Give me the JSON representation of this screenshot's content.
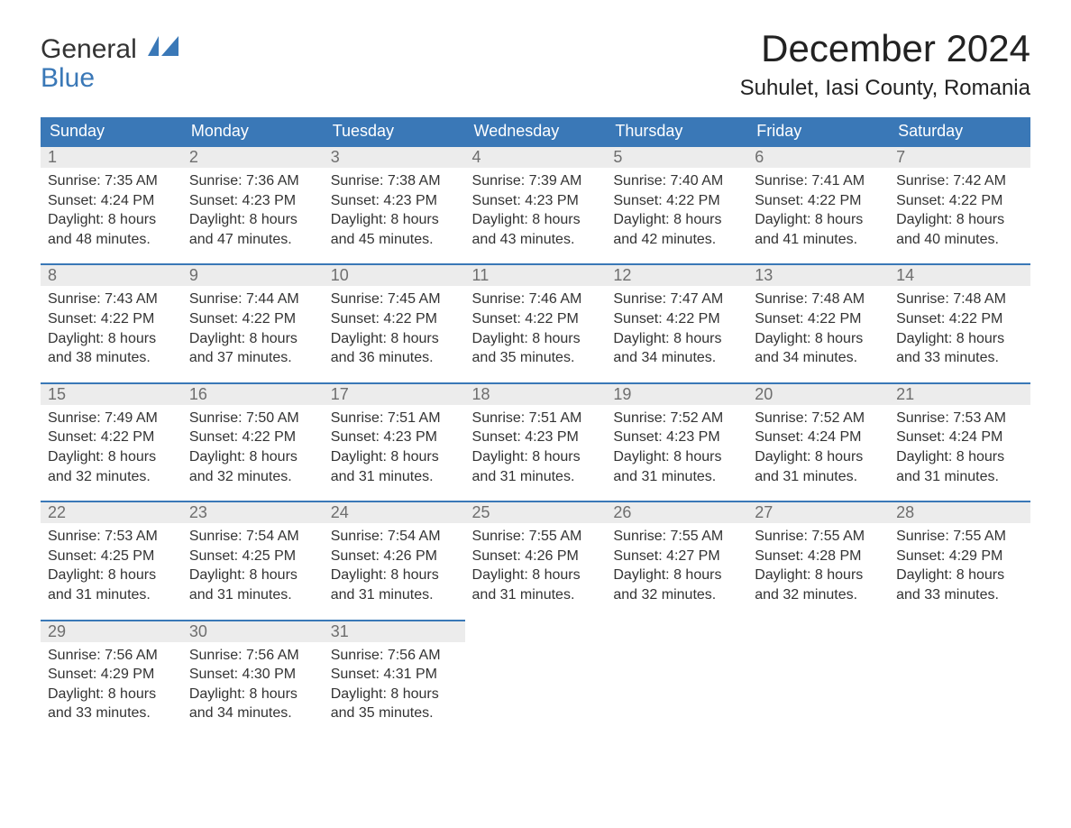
{
  "logo": {
    "line1": "General",
    "line2": "Blue"
  },
  "title": "December 2024",
  "location": "Suhulet, Iasi County, Romania",
  "colors": {
    "header_bg": "#3a78b7",
    "header_text": "#ffffff",
    "daynum_bg": "#ececec",
    "daynum_text": "#6e6e6e",
    "body_text": "#333333",
    "page_bg": "#ffffff"
  },
  "day_headers": [
    "Sunday",
    "Monday",
    "Tuesday",
    "Wednesday",
    "Thursday",
    "Friday",
    "Saturday"
  ],
  "weeks": [
    [
      {
        "n": "1",
        "sunrise": "Sunrise: 7:35 AM",
        "sunset": "Sunset: 4:24 PM",
        "daylight": "Daylight: 8 hours and 48 minutes."
      },
      {
        "n": "2",
        "sunrise": "Sunrise: 7:36 AM",
        "sunset": "Sunset: 4:23 PM",
        "daylight": "Daylight: 8 hours and 47 minutes."
      },
      {
        "n": "3",
        "sunrise": "Sunrise: 7:38 AM",
        "sunset": "Sunset: 4:23 PM",
        "daylight": "Daylight: 8 hours and 45 minutes."
      },
      {
        "n": "4",
        "sunrise": "Sunrise: 7:39 AM",
        "sunset": "Sunset: 4:23 PM",
        "daylight": "Daylight: 8 hours and 43 minutes."
      },
      {
        "n": "5",
        "sunrise": "Sunrise: 7:40 AM",
        "sunset": "Sunset: 4:22 PM",
        "daylight": "Daylight: 8 hours and 42 minutes."
      },
      {
        "n": "6",
        "sunrise": "Sunrise: 7:41 AM",
        "sunset": "Sunset: 4:22 PM",
        "daylight": "Daylight: 8 hours and 41 minutes."
      },
      {
        "n": "7",
        "sunrise": "Sunrise: 7:42 AM",
        "sunset": "Sunset: 4:22 PM",
        "daylight": "Daylight: 8 hours and 40 minutes."
      }
    ],
    [
      {
        "n": "8",
        "sunrise": "Sunrise: 7:43 AM",
        "sunset": "Sunset: 4:22 PM",
        "daylight": "Daylight: 8 hours and 38 minutes."
      },
      {
        "n": "9",
        "sunrise": "Sunrise: 7:44 AM",
        "sunset": "Sunset: 4:22 PM",
        "daylight": "Daylight: 8 hours and 37 minutes."
      },
      {
        "n": "10",
        "sunrise": "Sunrise: 7:45 AM",
        "sunset": "Sunset: 4:22 PM",
        "daylight": "Daylight: 8 hours and 36 minutes."
      },
      {
        "n": "11",
        "sunrise": "Sunrise: 7:46 AM",
        "sunset": "Sunset: 4:22 PM",
        "daylight": "Daylight: 8 hours and 35 minutes."
      },
      {
        "n": "12",
        "sunrise": "Sunrise: 7:47 AM",
        "sunset": "Sunset: 4:22 PM",
        "daylight": "Daylight: 8 hours and 34 minutes."
      },
      {
        "n": "13",
        "sunrise": "Sunrise: 7:48 AM",
        "sunset": "Sunset: 4:22 PM",
        "daylight": "Daylight: 8 hours and 34 minutes."
      },
      {
        "n": "14",
        "sunrise": "Sunrise: 7:48 AM",
        "sunset": "Sunset: 4:22 PM",
        "daylight": "Daylight: 8 hours and 33 minutes."
      }
    ],
    [
      {
        "n": "15",
        "sunrise": "Sunrise: 7:49 AM",
        "sunset": "Sunset: 4:22 PM",
        "daylight": "Daylight: 8 hours and 32 minutes."
      },
      {
        "n": "16",
        "sunrise": "Sunrise: 7:50 AM",
        "sunset": "Sunset: 4:22 PM",
        "daylight": "Daylight: 8 hours and 32 minutes."
      },
      {
        "n": "17",
        "sunrise": "Sunrise: 7:51 AM",
        "sunset": "Sunset: 4:23 PM",
        "daylight": "Daylight: 8 hours and 31 minutes."
      },
      {
        "n": "18",
        "sunrise": "Sunrise: 7:51 AM",
        "sunset": "Sunset: 4:23 PM",
        "daylight": "Daylight: 8 hours and 31 minutes."
      },
      {
        "n": "19",
        "sunrise": "Sunrise: 7:52 AM",
        "sunset": "Sunset: 4:23 PM",
        "daylight": "Daylight: 8 hours and 31 minutes."
      },
      {
        "n": "20",
        "sunrise": "Sunrise: 7:52 AM",
        "sunset": "Sunset: 4:24 PM",
        "daylight": "Daylight: 8 hours and 31 minutes."
      },
      {
        "n": "21",
        "sunrise": "Sunrise: 7:53 AM",
        "sunset": "Sunset: 4:24 PM",
        "daylight": "Daylight: 8 hours and 31 minutes."
      }
    ],
    [
      {
        "n": "22",
        "sunrise": "Sunrise: 7:53 AM",
        "sunset": "Sunset: 4:25 PM",
        "daylight": "Daylight: 8 hours and 31 minutes."
      },
      {
        "n": "23",
        "sunrise": "Sunrise: 7:54 AM",
        "sunset": "Sunset: 4:25 PM",
        "daylight": "Daylight: 8 hours and 31 minutes."
      },
      {
        "n": "24",
        "sunrise": "Sunrise: 7:54 AM",
        "sunset": "Sunset: 4:26 PM",
        "daylight": "Daylight: 8 hours and 31 minutes."
      },
      {
        "n": "25",
        "sunrise": "Sunrise: 7:55 AM",
        "sunset": "Sunset: 4:26 PM",
        "daylight": "Daylight: 8 hours and 31 minutes."
      },
      {
        "n": "26",
        "sunrise": "Sunrise: 7:55 AM",
        "sunset": "Sunset: 4:27 PM",
        "daylight": "Daylight: 8 hours and 32 minutes."
      },
      {
        "n": "27",
        "sunrise": "Sunrise: 7:55 AM",
        "sunset": "Sunset: 4:28 PM",
        "daylight": "Daylight: 8 hours and 32 minutes."
      },
      {
        "n": "28",
        "sunrise": "Sunrise: 7:55 AM",
        "sunset": "Sunset: 4:29 PM",
        "daylight": "Daylight: 8 hours and 33 minutes."
      }
    ],
    [
      {
        "n": "29",
        "sunrise": "Sunrise: 7:56 AM",
        "sunset": "Sunset: 4:29 PM",
        "daylight": "Daylight: 8 hours and 33 minutes."
      },
      {
        "n": "30",
        "sunrise": "Sunrise: 7:56 AM",
        "sunset": "Sunset: 4:30 PM",
        "daylight": "Daylight: 8 hours and 34 minutes."
      },
      {
        "n": "31",
        "sunrise": "Sunrise: 7:56 AM",
        "sunset": "Sunset: 4:31 PM",
        "daylight": "Daylight: 8 hours and 35 minutes."
      },
      null,
      null,
      null,
      null
    ]
  ]
}
